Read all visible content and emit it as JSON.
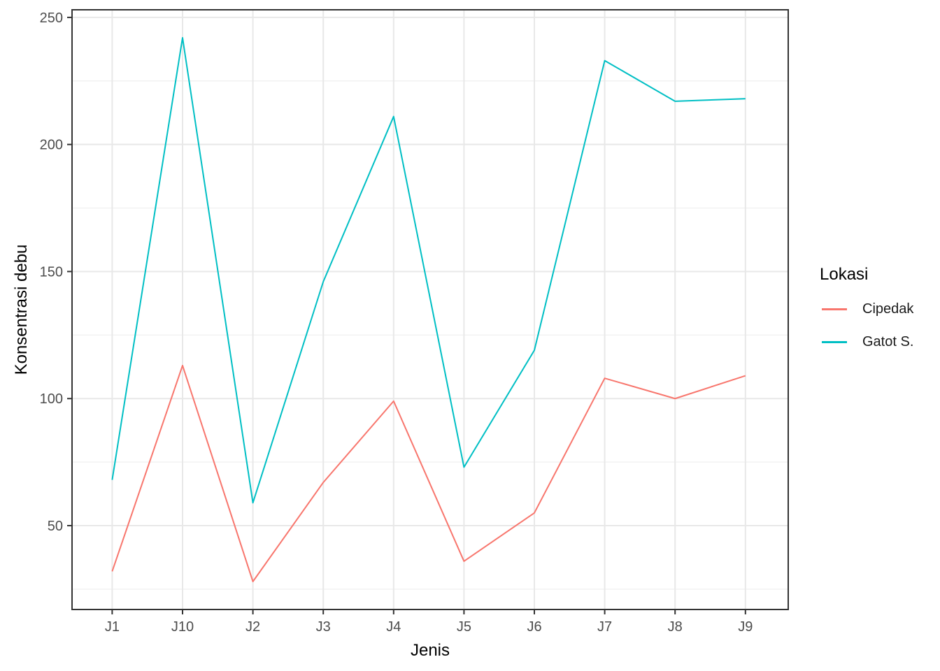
{
  "chart_data": {
    "type": "line",
    "title": "",
    "xlabel": "Jenis",
    "ylabel": "Konsentrasi debu",
    "legend_title": "Lokasi",
    "legend_position": "right",
    "categories": [
      "J1",
      "J10",
      "J2",
      "J3",
      "J4",
      "J5",
      "J6",
      "J7",
      "J8",
      "J9"
    ],
    "series": [
      {
        "name": "Cipedak",
        "color": "#F8766D",
        "values": [
          32,
          113,
          28,
          67,
          99,
          36,
          55,
          108,
          100,
          109
        ]
      },
      {
        "name": "Gatot S.",
        "color": "#00BFC4",
        "values": [
          68,
          242,
          59,
          146,
          211,
          73,
          119,
          233,
          217,
          218
        ]
      }
    ],
    "y_ticks": [
      50,
      100,
      150,
      200,
      250
    ],
    "y_minor_gridlines": [
      25,
      75,
      125,
      175,
      225
    ],
    "ylim": [
      17,
      253
    ],
    "grid": true,
    "colors": {
      "panel_background": "#FFFFFF",
      "panel_border": "#333333",
      "grid_major": "#E8E8E8",
      "grid_minor": "#F2F2F2",
      "tick_mark": "#333333",
      "tick_label": "#4D4D4D",
      "axis_title": "#000000",
      "legend_text": "#1A1A1A"
    }
  }
}
